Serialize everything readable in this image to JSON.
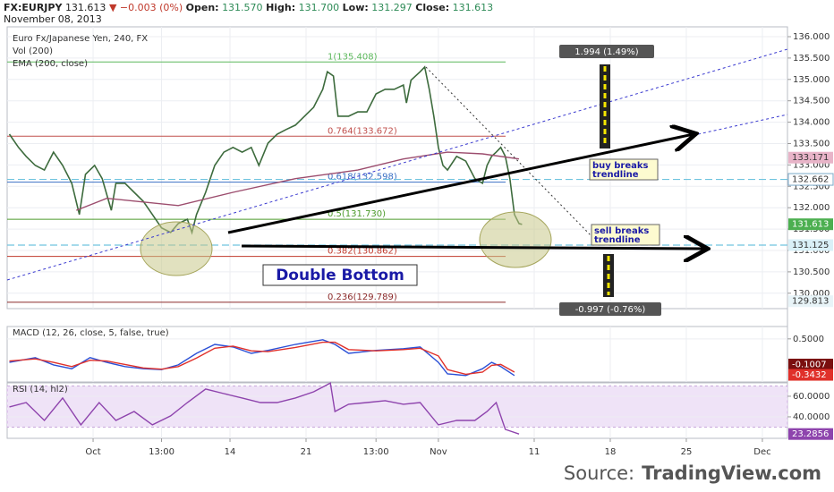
{
  "header": {
    "symbol": "FX:EURJPY",
    "last": "131.613",
    "change": "▼ −0.003 (0%)",
    "fields": [
      {
        "name": "Open:",
        "value": "131.570"
      },
      {
        "name": "High:",
        "value": "131.700"
      },
      {
        "name": "Low:",
        "value": "131.297"
      },
      {
        "name": "Close:",
        "value": "131.613"
      }
    ],
    "date": "November 08, 2013"
  },
  "source": {
    "prefix": "Source:",
    "site": "TradingView.com"
  },
  "chart_data": [
    {
      "type": "line",
      "title": "Euro Fx/Japanese Yen, 240, FX",
      "volume_label": "Vol (200)",
      "xlim": [
        -5.65,
        45.65
      ],
      "xticks": [
        {
          "value": 0,
          "label": "Oct"
        },
        {
          "value": 4.5,
          "label": "13:00"
        },
        {
          "value": 9,
          "label": "14"
        },
        {
          "value": 14,
          "label": "21"
        },
        {
          "value": 18.6,
          "label": "13:00"
        },
        {
          "value": 22.7,
          "label": "Nov"
        },
        {
          "value": 29,
          "label": "11"
        },
        {
          "value": 34,
          "label": "18"
        },
        {
          "value": 39,
          "label": "25"
        },
        {
          "value": 44,
          "label": "Dec"
        }
      ],
      "ylim": [
        129.64,
        136.23
      ],
      "yticks": [
        {
          "value": 130,
          "label": "130.000"
        },
        {
          "value": 130.5,
          "label": "130.500"
        },
        {
          "value": 131,
          "label": "131.000"
        },
        {
          "value": 131.5,
          "label": "131.500"
        },
        {
          "value": 132,
          "label": "132.000"
        },
        {
          "value": 132.5,
          "label": "132.500"
        },
        {
          "value": 133,
          "label": "133.000"
        },
        {
          "value": 133.5,
          "label": "133.500"
        },
        {
          "value": 134,
          "label": "134.000"
        },
        {
          "value": 134.5,
          "label": "134.500"
        },
        {
          "value": 135,
          "label": "135.000"
        },
        {
          "value": 135.5,
          "label": "135.500"
        },
        {
          "value": 136,
          "label": "136.000"
        }
      ],
      "grid": true,
      "series": [
        {
          "color": "#3d6b3d",
          "x": [
            -5.5,
            -4.9,
            -4.4,
            -3.8,
            -3.2,
            -2.6,
            -2.0,
            -1.4,
            -0.9,
            -0.5,
            0.1,
            0.6,
            1.2,
            1.5,
            2.1,
            2.7,
            3.3,
            3.9,
            4.5,
            5.1,
            5.6,
            6.2,
            6.5,
            6.8,
            7.4,
            8.0,
            8.6,
            9.2,
            9.8,
            10.4,
            10.9,
            11.5,
            12.1,
            12.7,
            13.3,
            13.9,
            14.5,
            15.1,
            15.4,
            15.8,
            16.1,
            16.8,
            17.4,
            18.0,
            18.6,
            19.2,
            19.8,
            20.4,
            20.6,
            20.9,
            21.5,
            21.8,
            22.1,
            22.4,
            22.7,
            23.0,
            23.3,
            23.9,
            24.5,
            25.1,
            25.6,
            25.9,
            26.2,
            26.5,
            26.8,
            27.1,
            27.4,
            27.7,
            28.0,
            28.2
          ],
          "values": [
            133.72,
            133.41,
            133.2,
            132.99,
            132.88,
            133.3,
            132.99,
            132.57,
            131.84,
            132.78,
            132.99,
            132.68,
            131.94,
            132.57,
            132.57,
            132.36,
            132.15,
            131.84,
            131.53,
            131.42,
            131.63,
            131.73,
            131.42,
            131.84,
            132.36,
            132.99,
            133.3,
            133.41,
            133.3,
            133.41,
            132.99,
            133.51,
            133.72,
            133.83,
            133.93,
            134.14,
            134.35,
            134.77,
            135.18,
            135.08,
            134.14,
            134.14,
            134.24,
            134.24,
            134.66,
            134.77,
            134.77,
            134.87,
            134.45,
            134.98,
            135.18,
            135.29,
            134.77,
            134.14,
            133.41,
            132.99,
            132.88,
            133.2,
            133.09,
            132.68,
            132.57,
            132.99,
            133.2,
            133.3,
            133.41,
            133.2,
            132.68,
            131.84,
            131.63,
            131.61
          ]
        },
        {
          "name": "EMA (200, close)",
          "color": "#9c4d6e",
          "x": [
            -1.1,
            0.9,
            5.6,
            9.2,
            13.3,
            17.4,
            20.4,
            23.3,
            25.6,
            28.0
          ],
          "values": [
            131.94,
            132.22,
            132.05,
            132.36,
            132.68,
            132.88,
            133.14,
            133.3,
            133.26,
            133.14
          ]
        }
      ],
      "levels": [
        {
          "value": 135.408,
          "label": "1(135.408)",
          "color": "#5cb85c"
        },
        {
          "value": 133.672,
          "label": "0.764(133.672)",
          "color": "#c0504d"
        },
        {
          "value": 132.598,
          "label": "0.618(132.598)",
          "color": "#3a6fc4"
        },
        {
          "value": 131.73,
          "label": "0.5(131.730)",
          "color": "#4c9a2a"
        },
        {
          "value": 130.862,
          "label": "0.382(130.862)",
          "color": "#c0392b"
        },
        {
          "value": 129.789,
          "label": "0.236(129.789)",
          "color": "#8b2a2a"
        }
      ],
      "hlines": [
        {
          "value": 132.662,
          "color": "#6fc3df"
        },
        {
          "value": 131.125,
          "color": "#6fc3df"
        }
      ],
      "tags": [
        {
          "value": 133.171,
          "color": "#e8b4c8",
          "text_color": "#333"
        },
        {
          "value": 132.662,
          "color": "#ffffff",
          "text_color": "#333"
        },
        {
          "value": 131.613,
          "color": "#4caf50",
          "text_color": "#ffffff"
        },
        {
          "value": 131.125,
          "color": "#d9f0f7",
          "text_color": "#333"
        },
        {
          "value": 129.813,
          "color": "#e8f4f8",
          "text_color": "#333"
        }
      ],
      "annotations": {
        "up_measure": "1.994 (1.49%)",
        "down_measure": "-0.997 (-0.76%)",
        "buy": [
          "buy breaks",
          "trendline"
        ],
        "sell": [
          "sell breaks",
          "trendline"
        ],
        "pattern": "Double Bottom"
      }
    },
    {
      "type": "line",
      "title": "MACD (12, 26, close, 5, false, true)",
      "ylim": [
        -0.51,
        0.79
      ],
      "yticks": [
        {
          "value": 0.5,
          "label": "0.5000"
        }
      ],
      "series": [
        {
          "color": "#2b50d6",
          "x": [
            -5.5,
            -3.8,
            -2.6,
            -1.4,
            -0.2,
            0.9,
            2.1,
            3.3,
            4.5,
            5.6,
            6.8,
            8.0,
            9.2,
            10.4,
            11.5,
            13.3,
            15.1,
            15.9,
            16.8,
            18.6,
            20.4,
            21.5,
            22.7,
            23.3,
            24.5,
            25.6,
            26.2,
            26.8,
            27.7
          ],
          "values": [
            -0.05,
            0.06,
            -0.11,
            -0.2,
            0.06,
            -0.05,
            -0.15,
            -0.2,
            -0.22,
            -0.11,
            0.16,
            0.37,
            0.31,
            0.16,
            0.23,
            0.37,
            0.48,
            0.37,
            0.16,
            0.23,
            0.27,
            0.31,
            -0.05,
            -0.32,
            -0.36,
            -0.2,
            -0.05,
            -0.15,
            -0.36
          ]
        },
        {
          "color": "#e0302a",
          "x": [
            -5.5,
            -3.8,
            -2.6,
            -1.4,
            -0.2,
            0.9,
            2.1,
            3.3,
            4.5,
            5.6,
            6.8,
            8.0,
            9.2,
            10.4,
            11.5,
            13.3,
            15.1,
            15.9,
            16.8,
            18.6,
            20.4,
            21.5,
            22.7,
            23.3,
            24.5,
            25.6,
            26.2,
            26.8,
            27.7
          ],
          "values": [
            -0.02,
            0.03,
            -0.05,
            -0.15,
            0.0,
            -0.02,
            -0.1,
            -0.18,
            -0.21,
            -0.15,
            0.05,
            0.28,
            0.33,
            0.22,
            0.2,
            0.3,
            0.42,
            0.42,
            0.25,
            0.22,
            0.25,
            0.28,
            0.1,
            -0.22,
            -0.33,
            -0.28,
            -0.12,
            -0.1,
            -0.28
          ]
        }
      ],
      "tags": [
        {
          "value": -0.1007,
          "color": "#7a0f0f",
          "text_color": "#ffffff"
        },
        {
          "value": -0.3432,
          "color": "#e0302a",
          "text_color": "#ffffff"
        }
      ]
    },
    {
      "type": "line",
      "title": "RSI (14, hl2)",
      "ylim": [
        19.1,
        73.0
      ],
      "yticks": [
        {
          "value": 60,
          "label": "60.0000"
        },
        {
          "value": 40,
          "label": "40.0000"
        }
      ],
      "band": [
        30,
        70
      ],
      "series": [
        {
          "color": "#8e44ad",
          "x": [
            -5.5,
            -4.4,
            -3.2,
            -2.0,
            -0.8,
            0.4,
            1.5,
            2.7,
            3.9,
            5.1,
            6.2,
            7.4,
            8.6,
            9.8,
            11.0,
            12.1,
            13.3,
            14.5,
            15.6,
            15.9,
            16.8,
            18.0,
            19.2,
            20.4,
            21.5,
            22.7,
            23.9,
            25.1,
            25.9,
            26.5,
            27.1,
            28.0
          ],
          "values": [
            49.6,
            53.9,
            36.5,
            58.3,
            32.2,
            53.9,
            36.5,
            45.2,
            32.2,
            40.9,
            53.9,
            67.0,
            62.6,
            58.3,
            53.9,
            53.9,
            58.3,
            64.3,
            72.8,
            45.2,
            52.2,
            53.9,
            55.7,
            52.2,
            53.9,
            32.2,
            36.5,
            36.5,
            45.2,
            53.9,
            27.8,
            23.3
          ]
        }
      ],
      "tags": [
        {
          "value": 23.2856,
          "color": "#8e44ad",
          "text_color": "#ffffff"
        }
      ]
    }
  ]
}
